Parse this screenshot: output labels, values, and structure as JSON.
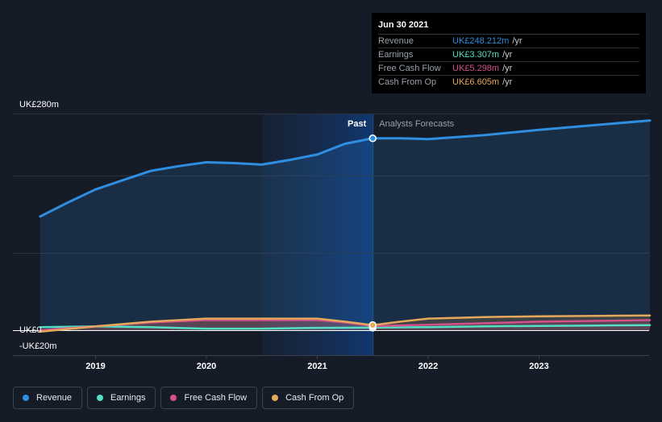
{
  "chart_data": {
    "type": "area",
    "y_axis_labels": [
      "UK£280m",
      "UK£0",
      "-UK£20m"
    ],
    "ylim": [
      -20,
      280
    ],
    "divider_date": 2021.5,
    "region_labels": {
      "past": "Past",
      "forecast": "Analysts Forecasts"
    },
    "x_ticks": [
      {
        "value": 2019,
        "label": "2019"
      },
      {
        "value": 2020,
        "label": "2020"
      },
      {
        "value": 2021,
        "label": "2021"
      },
      {
        "value": 2022,
        "label": "2022"
      },
      {
        "value": 2023,
        "label": "2023"
      }
    ],
    "series": [
      {
        "name": "Revenue",
        "color": "#2f8ee0",
        "x": [
          2018.5,
          2018.75,
          2019.0,
          2019.25,
          2019.5,
          2019.75,
          2020.0,
          2020.25,
          2020.5,
          2020.75,
          2021.0,
          2021.25,
          2021.5,
          2021.75,
          2022.0,
          2022.5,
          2023.0,
          2023.5,
          2024.0
        ],
        "values": [
          147,
          165,
          182,
          194,
          206,
          212,
          217,
          216,
          214,
          220,
          227,
          241,
          248,
          248,
          247,
          252,
          259,
          265,
          271
        ]
      },
      {
        "name": "Earnings",
        "color": "#52e0c4",
        "x": [
          2018.5,
          2019.0,
          2019.5,
          2020.0,
          2020.5,
          2021.0,
          2021.5,
          2022.0,
          2022.5,
          2023.0,
          2023.5,
          2024.0
        ],
        "values": [
          4,
          5,
          4,
          2,
          2,
          3,
          3.3,
          4,
          5,
          5.5,
          6,
          6.5
        ]
      },
      {
        "name": "Free Cash Flow",
        "color": "#d4508a",
        "x": [
          2018.5,
          2019.0,
          2019.5,
          2020.0,
          2020.25,
          2020.5,
          2020.75,
          2021.0,
          2021.25,
          2021.5,
          2022.0,
          2022.5,
          2023.0,
          2023.5,
          2024.0
        ],
        "values": [
          0,
          5,
          10,
          13,
          13,
          13,
          13,
          13,
          10,
          5.3,
          7,
          9,
          11,
          12,
          13
        ]
      },
      {
        "name": "Cash From Op",
        "color": "#e6a85a",
        "x": [
          2018.5,
          2019.0,
          2019.5,
          2020.0,
          2020.25,
          2020.5,
          2020.75,
          2021.0,
          2021.25,
          2021.5,
          2021.75,
          2022.0,
          2022.5,
          2023.0,
          2023.5,
          2024.0
        ],
        "values": [
          -2,
          5,
          11,
          15,
          15,
          15,
          15,
          15,
          11,
          6.6,
          11,
          15,
          17,
          18,
          18.5,
          19
        ]
      }
    ],
    "tooltip": {
      "date": "Jun 30 2021",
      "rows": [
        {
          "name": "Revenue",
          "value": "UK£248.212m",
          "unit": "/yr",
          "color": "#2f8ee0"
        },
        {
          "name": "Earnings",
          "value": "UK£3.307m",
          "unit": "/yr",
          "color": "#52e0c4"
        },
        {
          "name": "Free Cash Flow",
          "value": "UK£5.298m",
          "unit": "/yr",
          "color": "#d4508a"
        },
        {
          "name": "Cash From Op",
          "value": "UK£6.605m",
          "unit": "/yr",
          "color": "#e6a85a"
        }
      ]
    }
  },
  "legend": [
    {
      "label": "Revenue",
      "color": "#2f8ee0"
    },
    {
      "label": "Earnings",
      "color": "#52e0c4"
    },
    {
      "label": "Free Cash Flow",
      "color": "#d4508a"
    },
    {
      "label": "Cash From Op",
      "color": "#e6a85a"
    }
  ]
}
